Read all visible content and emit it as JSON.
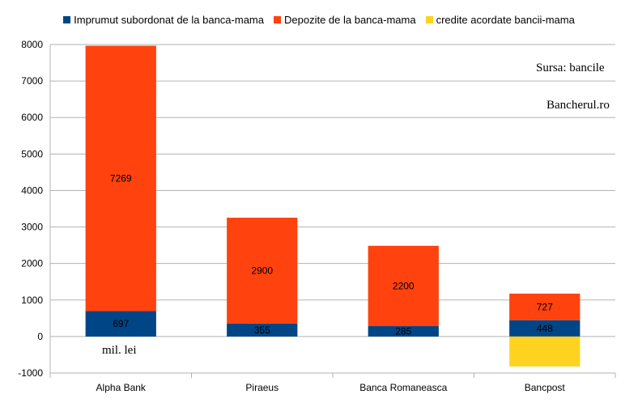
{
  "chart_data": {
    "type": "bar",
    "stacked": true,
    "categories": [
      "Alpha Bank",
      "Piraeus",
      "Banca Romaneasca",
      "Bancpost"
    ],
    "series": [
      {
        "name": "Imprumut subordonat de la banca-mama",
        "color": "#004586",
        "values": [
          697,
          355,
          285,
          448
        ]
      },
      {
        "name": "Depozite de la banca-mama",
        "color": "#ff420e",
        "values": [
          7269,
          2900,
          2200,
          727
        ]
      },
      {
        "name": "credite acordate bancii-mama",
        "color": "#ffd320",
        "values": [
          0,
          0,
          0,
          -820
        ]
      }
    ],
    "ylim": [
      -1000,
      8000
    ],
    "yticks": [
      -1000,
      0,
      1000,
      2000,
      3000,
      4000,
      5000,
      6000,
      7000,
      8000
    ],
    "grid": true,
    "legend_position": "top",
    "title": "",
    "xlabel": "",
    "ylabel": ""
  },
  "notes": {
    "source": "Sursa: bancile",
    "brand": "Bancherul.ro",
    "unit": "mil. lei"
  }
}
